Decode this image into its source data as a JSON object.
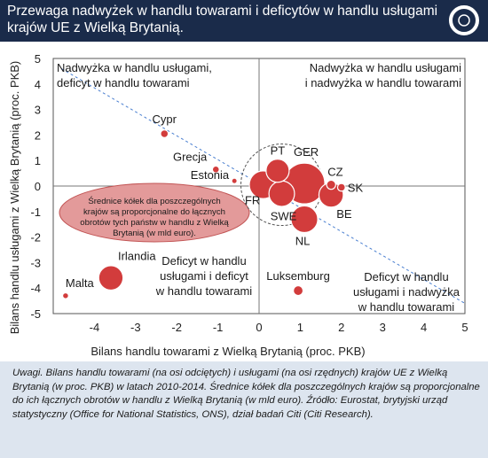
{
  "header": {
    "title": "Przewaga nadwyżek w handlu towarami i deficytów w handlu usługami krajów UE z Wielką Brytanią.",
    "logo_icon": "obserwator-logo-icon",
    "background": "#1a2b4a"
  },
  "chart_data": {
    "type": "scatter",
    "xlabel": "Bilans handlu towarami z Wielką Brytanią (proc. PKB)",
    "ylabel": "Bilans handlu usługami z Wielką Brytanią (proc. PKB)",
    "xlim": [
      -5,
      5
    ],
    "ylim": [
      -5,
      5
    ],
    "x_ticks": [
      -4,
      -3,
      -2,
      -1,
      0,
      1,
      2,
      3,
      4,
      5
    ],
    "y_ticks": [
      5,
      4,
      3,
      2,
      1,
      0,
      -1,
      -2,
      -3,
      -4,
      -5
    ],
    "grid": false,
    "marker_color": "#d23c3c",
    "trendline": {
      "x": [
        -4.8,
        5.0
      ],
      "y": [
        4.6,
        -4.6
      ],
      "style": "dashed",
      "color": "#4a7fd0"
    },
    "points": [
      {
        "name": "Cypr",
        "x": -2.3,
        "y": 2.05,
        "size": 0.5
      },
      {
        "name": "Grecja",
        "x": -1.05,
        "y": 0.65,
        "size": 0.4
      },
      {
        "name": "Estonia",
        "x": -0.6,
        "y": 0.2,
        "size": 0.25
      },
      {
        "name": "Irlandia",
        "x": -3.6,
        "y": -3.6,
        "size": 5
      },
      {
        "name": "Malta",
        "x": -4.7,
        "y": -4.3,
        "size": 0.3
      },
      {
        "name": "Luksemburg",
        "x": 0.95,
        "y": -4.1,
        "size": 0.8
      },
      {
        "name": "PT",
        "x": 0.45,
        "y": 0.6,
        "size": 4.5
      },
      {
        "name": "GER",
        "x": 1.1,
        "y": 0.1,
        "size": 14
      },
      {
        "name": "FR",
        "x": 0.1,
        "y": 0.05,
        "size": 6.5
      },
      {
        "name": "SWE",
        "x": 0.55,
        "y": -0.3,
        "size": 5.5
      },
      {
        "name": "NL",
        "x": 1.1,
        "y": -1.3,
        "size": 6
      },
      {
        "name": "CZ",
        "x": 1.75,
        "y": 0.05,
        "size": 0.7
      },
      {
        "name": "SK",
        "x": 2.0,
        "y": -0.05,
        "size": 0.5
      },
      {
        "name": "BE",
        "x": 1.75,
        "y": -0.35,
        "size": 5
      }
    ],
    "quadrant_labels": {
      "top_left": [
        "Nadwyżka w handlu usługami,",
        "deficyt w handlu towarami"
      ],
      "top_right": [
        "Nadwyżka w handlu usługami",
        "i nadwyżka w handlu towarami"
      ],
      "bottom_left": [
        "Deficyt w handlu",
        "usługami i deficyt",
        "w handlu towarami"
      ],
      "bottom_right": [
        "Deficyt w handlu",
        "usługami i nadwyżka",
        "w handlu towarami"
      ]
    },
    "size_note": [
      "Średnice kółek dla poszczególnych",
      "krajów są proporcjonalne do łącznych",
      "obrotów tych państw w handlu z Wielką",
      "Brytanią (w mld euro)."
    ]
  },
  "note": "Uwagi. Bilans handlu towarami (na osi odciętych) i usługami (na osi rzędnych) krajów UE z Wielką Brytanią (w proc. PKB) w latach 2010-2014. Średnice kółek dla poszczególnych krajów są proporcjonalne do ich łącznych obrotów w handlu z Wielką Brytanią (w mld euro). Źródło: Eurostat, brytyjski urząd statystyczny (Office for National Statistics, ONS), dział badań Citi (Citi Research).",
  "colors": {
    "header_bg": "#1a2b4a",
    "note_bg": "#dde5ef",
    "bubble": "#d23c3c",
    "bubble_note_bg": "#e39a9a"
  }
}
